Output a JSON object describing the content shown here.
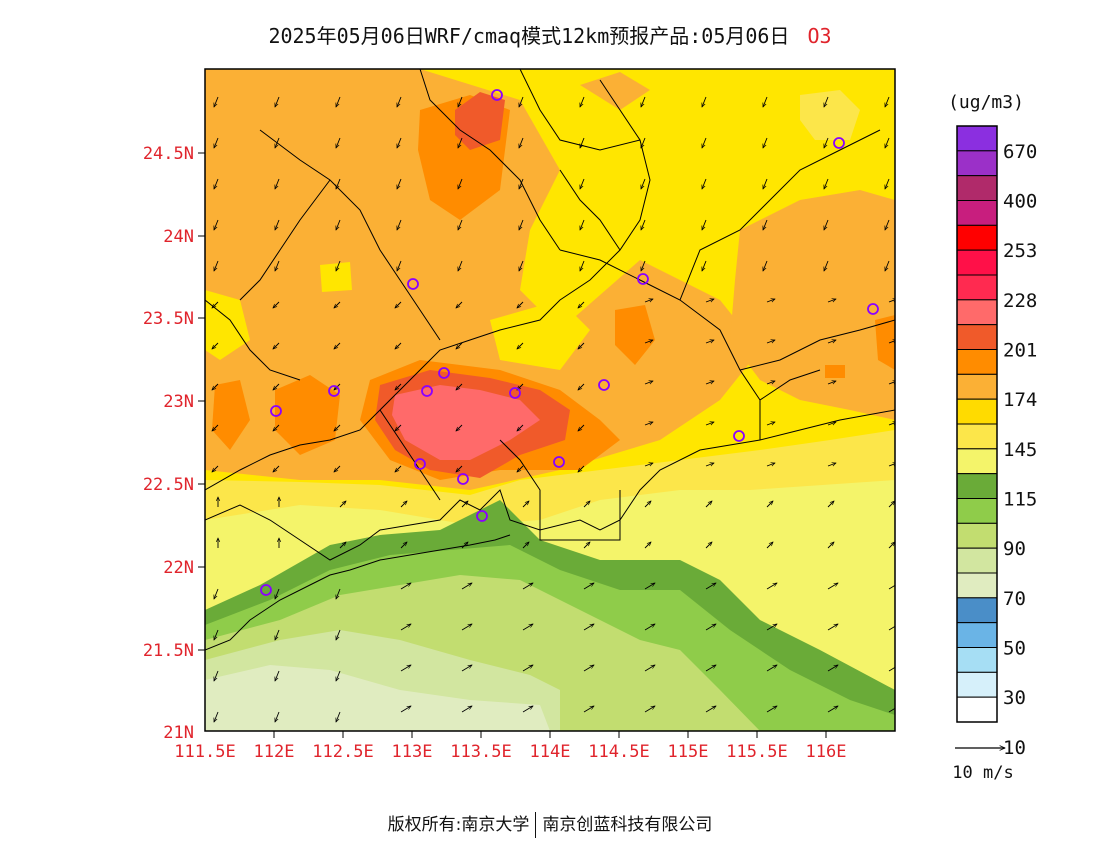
{
  "header": {
    "title": "2025年05月06日WRF/cmaq模式12km预报产品:05月06日",
    "species": "O3"
  },
  "axes": {
    "lat_labels": [
      "24.5N",
      "24N",
      "23.5N",
      "23N",
      "22.5N",
      "22N",
      "21.5N",
      "21N"
    ],
    "lon_labels": [
      "111.5E",
      "112E",
      "112.5E",
      "113E",
      "113.5E",
      "114E",
      "114.5E",
      "115E",
      "115.5E",
      "116E"
    ],
    "label_color": "#e0242c"
  },
  "legend": {
    "unit": "(ug/m3)",
    "bins": [
      {
        "color": "#8b2fe0"
      },
      {
        "color": "#9b30c8"
      },
      {
        "color": "#b02a6a"
      },
      {
        "color": "#c81e7e"
      },
      {
        "color": "#ff0000"
      },
      {
        "color": "#ff1048"
      },
      {
        "color": "#ff2a50"
      },
      {
        "color": "#ff6a6a"
      },
      {
        "color": "#f05a2a"
      },
      {
        "color": "#ff8c00"
      },
      {
        "color": "#fbb035"
      },
      {
        "color": "#ffdb00"
      },
      {
        "color": "#fce64a"
      },
      {
        "color": "#f4f46a"
      },
      {
        "color": "#6aab38"
      },
      {
        "color": "#8fcc4a"
      },
      {
        "color": "#c2dd70"
      },
      {
        "color": "#d2e6a0"
      },
      {
        "color": "#e0ecc0"
      },
      {
        "color": "#4a8ec8"
      },
      {
        "color": "#6ab4e6"
      },
      {
        "color": "#a6def4"
      },
      {
        "color": "#d6f0fa"
      },
      {
        "color": "#ffffff"
      }
    ],
    "labels": [
      "670",
      "400",
      "253",
      "228",
      "201",
      "174",
      "145",
      "115",
      "90",
      "70",
      "50",
      "30",
      "10"
    ]
  },
  "wind_scale": {
    "label": "10 m/s"
  },
  "stations_label": "monitoring-stations",
  "footer": {
    "left": "版权所有:南京大学",
    "right": "南京创蓝科技有限公司"
  }
}
